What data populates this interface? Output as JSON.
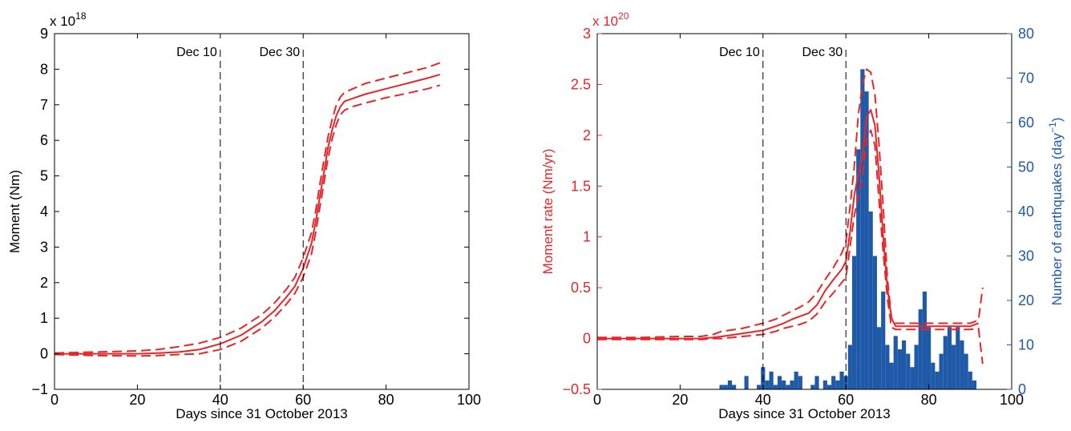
{
  "chart_data": [
    {
      "type": "line",
      "xlabel": "Days since 31 October 2013",
      "ylabel": "Moment (Nm)",
      "y_exponent_base": "x 10",
      "y_exponent_power": "18",
      "xlim": [
        0,
        100
      ],
      "ylim": [
        -1,
        9
      ],
      "x_ticks": [
        0,
        20,
        40,
        60,
        80,
        100
      ],
      "y_ticks": [
        -1,
        0,
        1,
        2,
        3,
        4,
        5,
        6,
        7,
        8,
        9
      ],
      "grid": false,
      "colors": {
        "series": "#e8262a",
        "axis": "#000000",
        "marker_line": "#000000"
      },
      "markers": [
        {
          "x": 40,
          "label": "Dec 10"
        },
        {
          "x": 60,
          "label": "Dec 30"
        }
      ],
      "series": [
        {
          "style": "solid",
          "x": [
            0,
            10,
            20,
            25,
            30,
            35,
            40,
            45,
            50,
            53,
            56,
            58,
            60,
            62,
            63,
            64,
            65,
            66,
            67,
            68,
            69,
            70,
            72,
            75,
            80,
            85,
            90,
            93
          ],
          "y": [
            0,
            0,
            0,
            0.02,
            0.05,
            0.12,
            0.28,
            0.52,
            0.9,
            1.2,
            1.6,
            1.9,
            2.4,
            3.1,
            3.7,
            4.4,
            5.1,
            5.8,
            6.3,
            6.7,
            6.95,
            7.1,
            7.18,
            7.3,
            7.45,
            7.6,
            7.75,
            7.85
          ]
        },
        {
          "style": "dashed",
          "x": [
            0,
            10,
            20,
            25,
            30,
            35,
            40,
            45,
            50,
            53,
            56,
            58,
            60,
            62,
            63,
            64,
            65,
            66,
            67,
            68,
            69,
            70,
            72,
            75,
            80,
            85,
            90,
            93
          ],
          "y": [
            0.02,
            0.05,
            0.08,
            0.12,
            0.2,
            0.3,
            0.46,
            0.72,
            1.1,
            1.42,
            1.82,
            2.15,
            2.7,
            3.4,
            4.0,
            4.75,
            5.45,
            6.1,
            6.6,
            7.0,
            7.22,
            7.35,
            7.45,
            7.6,
            7.75,
            7.9,
            8.05,
            8.18
          ]
        },
        {
          "style": "dashed",
          "x": [
            0,
            10,
            20,
            25,
            30,
            35,
            40,
            45,
            50,
            53,
            56,
            58,
            60,
            62,
            63,
            64,
            65,
            66,
            67,
            68,
            69,
            70,
            72,
            75,
            80,
            85,
            90,
            93
          ],
          "y": [
            -0.02,
            -0.05,
            -0.06,
            -0.05,
            -0.02,
            0.0,
            0.12,
            0.35,
            0.72,
            1.02,
            1.4,
            1.7,
            2.15,
            2.8,
            3.4,
            4.1,
            4.8,
            5.5,
            6.05,
            6.45,
            6.72,
            6.85,
            6.95,
            7.05,
            7.2,
            7.32,
            7.45,
            7.55
          ]
        }
      ]
    },
    {
      "type": "line",
      "xlabel": "Days since 31 October 2013",
      "ylabel": "Moment rate (Nm/yr)",
      "ylabel_right_text": "Number of earthquakes (day",
      "ylabel_right_sup": "−1",
      "ylabel_right_close": ")",
      "y_exponent_base": "x 10",
      "y_exponent_power": "20",
      "xlim": [
        0,
        100
      ],
      "ylim": [
        -0.5,
        3
      ],
      "ylim_right": [
        0,
        80
      ],
      "x_ticks": [
        0,
        20,
        40,
        60,
        80,
        100
      ],
      "y_ticks": [
        -0.5,
        0,
        0.5,
        1,
        1.5,
        2,
        2.5,
        3
      ],
      "y_ticks_right": [
        0,
        10,
        20,
        30,
        40,
        50,
        60,
        70,
        80
      ],
      "grid": false,
      "colors": {
        "series": "#e8262a",
        "bars": "#1f5aa8",
        "left_axis": "#e8262a",
        "right_axis": "#1f5aa8",
        "marker_line": "#000000"
      },
      "markers": [
        {
          "x": 40,
          "label": "Dec 10"
        },
        {
          "x": 60,
          "label": "Dec 30"
        }
      ],
      "bars": {
        "name": "Number of earthquakes (day−1)",
        "x": [
          30,
          31,
          32,
          33,
          34,
          35,
          36,
          37,
          38,
          39,
          40,
          41,
          42,
          43,
          44,
          45,
          46,
          47,
          48,
          49,
          50,
          51,
          52,
          53,
          54,
          55,
          56,
          57,
          58,
          59,
          60,
          61,
          62,
          63,
          64,
          65,
          66,
          67,
          68,
          69,
          70,
          71,
          72,
          73,
          74,
          75,
          76,
          77,
          78,
          79,
          80,
          81,
          82,
          83,
          84,
          85,
          86,
          87,
          88,
          89,
          90,
          91
        ],
        "values": [
          1,
          1,
          2,
          1,
          0,
          0,
          3,
          0,
          0,
          1,
          5,
          2,
          4,
          1,
          3,
          2,
          1,
          2,
          4,
          3,
          0,
          0,
          1,
          3,
          0,
          2,
          1,
          3,
          2,
          4,
          3,
          10,
          30,
          54,
          72,
          67,
          40,
          30,
          14,
          22,
          10,
          6,
          12,
          9,
          11,
          8,
          5,
          10,
          18,
          22,
          14,
          6,
          4,
          8,
          12,
          14,
          10,
          14,
          11,
          8,
          4,
          2
        ]
      },
      "series": [
        {
          "style": "solid",
          "x": [
            0,
            10,
            20,
            25,
            28,
            30,
            35,
            40,
            43,
            45,
            47,
            49,
            51,
            53,
            55,
            57,
            59,
            60,
            61,
            62,
            63,
            64,
            65,
            66,
            67,
            68,
            69,
            70,
            71,
            72,
            75,
            80,
            85,
            90,
            92
          ],
          "y": [
            0,
            0,
            0,
            0,
            0.01,
            0.02,
            0.05,
            0.08,
            0.12,
            0.15,
            0.19,
            0.22,
            0.25,
            0.33,
            0.47,
            0.58,
            0.68,
            0.76,
            1.05,
            1.4,
            1.62,
            1.78,
            2.18,
            2.25,
            2.1,
            1.6,
            1.0,
            0.5,
            0.2,
            0.12,
            0.12,
            0.12,
            0.12,
            0.12,
            0.15
          ]
        },
        {
          "style": "dashed",
          "x": [
            0,
            10,
            20,
            25,
            28,
            30,
            35,
            40,
            43,
            45,
            47,
            49,
            51,
            53,
            55,
            57,
            59,
            60,
            61,
            62,
            63,
            64,
            65,
            66,
            67,
            68,
            69,
            70,
            71,
            72,
            75,
            80,
            85,
            90,
            92,
            93
          ],
          "y": [
            0.01,
            0.01,
            0.02,
            0.02,
            0.04,
            0.07,
            0.1,
            0.15,
            0.19,
            0.23,
            0.27,
            0.31,
            0.36,
            0.45,
            0.58,
            0.7,
            0.84,
            0.95,
            1.3,
            1.68,
            2.2,
            2.5,
            2.65,
            2.62,
            2.4,
            1.9,
            1.3,
            0.6,
            0.2,
            0.15,
            0.15,
            0.15,
            0.15,
            0.15,
            0.18,
            0.5
          ]
        },
        {
          "style": "dashed",
          "x": [
            0,
            10,
            20,
            25,
            28,
            30,
            35,
            40,
            43,
            45,
            47,
            49,
            51,
            53,
            55,
            57,
            59,
            60,
            61,
            62,
            63,
            64,
            65,
            66,
            67,
            68,
            69,
            70,
            71,
            72,
            75,
            80,
            85,
            90,
            92,
            93
          ],
          "y": [
            -0.01,
            -0.01,
            -0.01,
            -0.01,
            0.0,
            0.0,
            0.02,
            0.04,
            0.07,
            0.1,
            0.12,
            0.14,
            0.17,
            0.24,
            0.36,
            0.45,
            0.55,
            0.6,
            0.9,
            1.2,
            1.4,
            1.6,
            1.95,
            2.05,
            1.9,
            1.35,
            0.85,
            0.4,
            0.11,
            0.09,
            0.09,
            0.09,
            0.09,
            0.09,
            0.1,
            -0.25
          ]
        }
      ]
    }
  ]
}
